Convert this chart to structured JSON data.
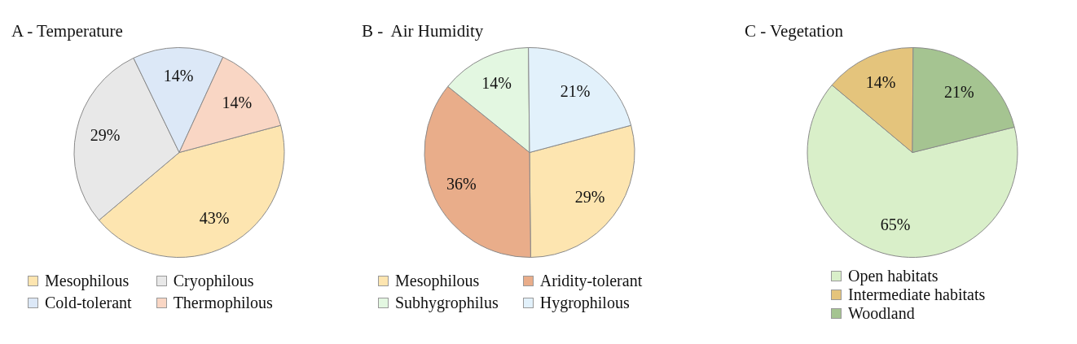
{
  "chart_data": [
    {
      "type": "pie",
      "title": "A - Temperature",
      "categories": [
        "Mesophilous",
        "Cryophilous",
        "Cold-tolerant",
        "Thermophilous"
      ],
      "values": [
        43,
        29,
        14,
        14
      ],
      "value_labels": [
        "43%",
        "29%",
        "14%",
        "14%"
      ],
      "colors": [
        "#fde5b0",
        "#e8e8e8",
        "#dce8f7",
        "#f9d6c4"
      ],
      "legend": "bottom"
    },
    {
      "type": "pie",
      "title": "B -  Air Humidity",
      "categories": [
        "Mesophilous",
        "Aridity-tolerant",
        "Subhygrophilus",
        "Hygrophilous"
      ],
      "values": [
        29,
        36,
        14,
        21
      ],
      "value_labels": [
        "29%",
        "36%",
        "14%",
        "21%"
      ],
      "colors": [
        "#fde5b0",
        "#e9ad8a",
        "#e3f7e1",
        "#e2f1fb"
      ],
      "legend": "bottom"
    },
    {
      "type": "pie",
      "title": "C - Vegetation",
      "categories": [
        "Open habitats",
        "Intermediate habitats",
        "Woodland"
      ],
      "values": [
        65,
        14,
        21
      ],
      "value_labels": [
        "65%",
        "14%",
        "21%"
      ],
      "colors": [
        "#d9efc9",
        "#e4c47c",
        "#a5c491"
      ],
      "legend": "bottom"
    }
  ]
}
